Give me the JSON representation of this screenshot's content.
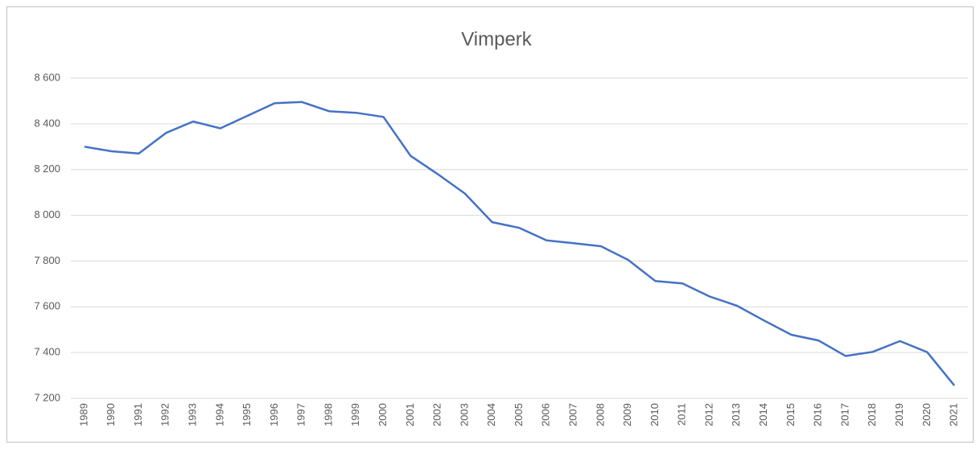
{
  "chart_data": {
    "type": "line",
    "title": "Vimperk",
    "categories": [
      "1989",
      "1990",
      "1991",
      "1992",
      "1993",
      "1994",
      "1995",
      "1996",
      "1997",
      "1998",
      "1999",
      "2000",
      "2001",
      "2002",
      "2003",
      "2004",
      "2005",
      "2006",
      "2007",
      "2008",
      "2009",
      "2010",
      "2011",
      "2012",
      "2013",
      "2014",
      "2015",
      "2016",
      "2017",
      "2018",
      "2019",
      "2020",
      "2021"
    ],
    "values": [
      8300,
      8280,
      8270,
      8360,
      8410,
      8380,
      8435,
      8490,
      8495,
      8455,
      8448,
      8430,
      8260,
      8180,
      8095,
      7970,
      7945,
      7890,
      7878,
      7865,
      7805,
      7713,
      7702,
      7645,
      7605,
      7540,
      7478,
      7453,
      7385,
      7403,
      7450,
      7402,
      7256
    ],
    "color": "#4472c4",
    "ylim": [
      7200,
      8600
    ],
    "yticks": [
      {
        "value": 7200,
        "label": "7 200"
      },
      {
        "value": 7400,
        "label": "7 400"
      },
      {
        "value": 7600,
        "label": "7 600"
      },
      {
        "value": 7800,
        "label": "7 800"
      },
      {
        "value": 8000,
        "label": "8 000"
      },
      {
        "value": 8200,
        "label": "8 200"
      },
      {
        "value": 8400,
        "label": "8 400"
      },
      {
        "value": 8600,
        "label": "8 600"
      }
    ],
    "grid": true
  }
}
